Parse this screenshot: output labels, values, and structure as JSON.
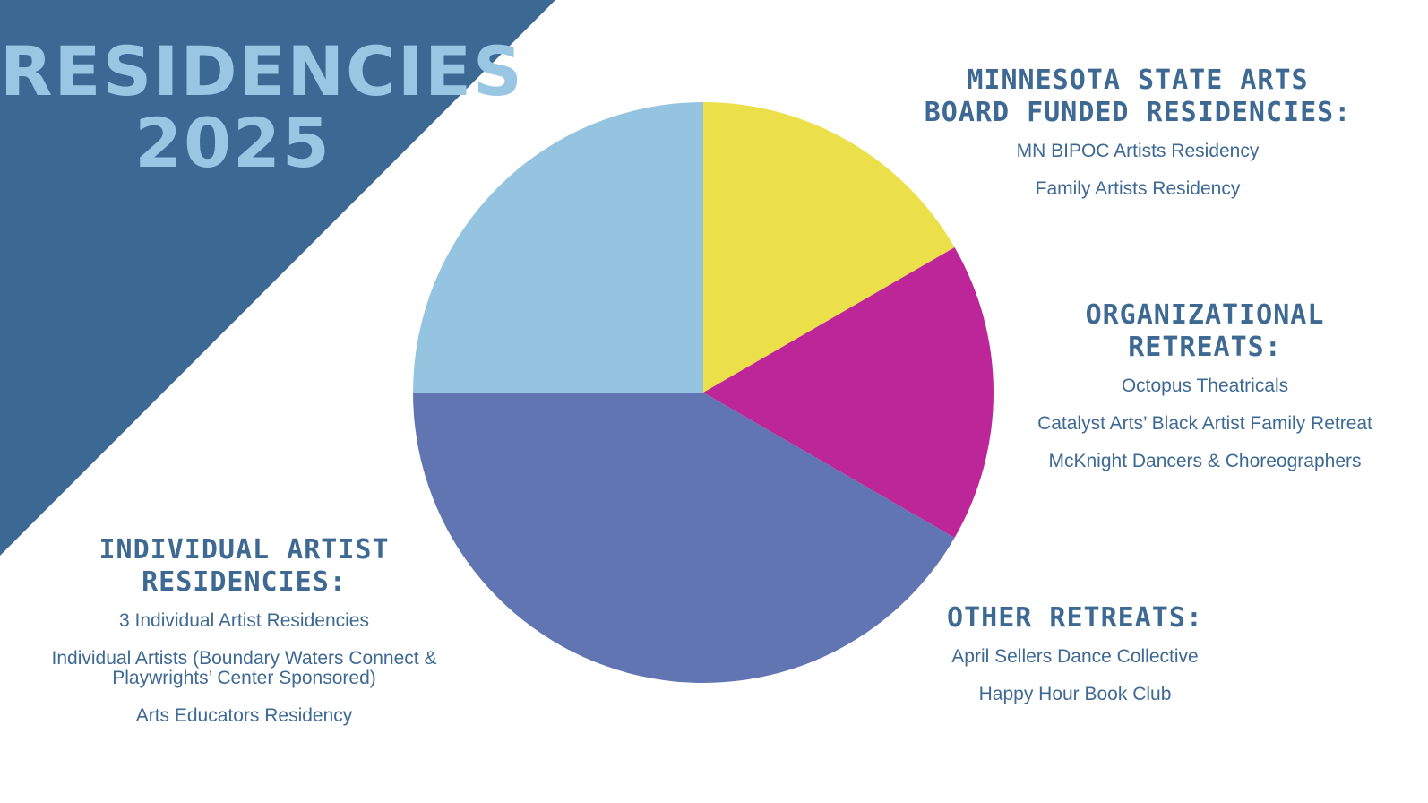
{
  "title": {
    "line1": "RESIDENCIES",
    "line2": "2025"
  },
  "colors": {
    "triangle": "#3c6894",
    "title": "#98c6e3",
    "text": "#3d6993",
    "msab": "#ebe04a",
    "org": "#bd2699",
    "other": "#6175b3",
    "indiv": "#95c4e0"
  },
  "chart_data": {
    "type": "pie",
    "start_angle_deg": 0,
    "direction": "clockwise",
    "slices": [
      {
        "key": "msab",
        "label": "MINNESOTA STATE ARTS BOARD FUNDED RESIDENCIES:",
        "value": 2,
        "color": "#ebe04a"
      },
      {
        "key": "org",
        "label": "ORGANIZATIONAL RETREATS:",
        "value": 2,
        "color": "#bd2699"
      },
      {
        "key": "other",
        "label": "OTHER RETREATS:",
        "value": 5,
        "color": "#6175b3"
      },
      {
        "key": "indiv",
        "label": "INDIVIDUAL ARTIST RESIDENCIES:",
        "value": 3,
        "color": "#95c4e0"
      }
    ]
  },
  "groups": {
    "msab": {
      "heading_line1": "MINNESOTA STATE ARTS",
      "heading_line2": "BOARD FUNDED RESIDENCIES:",
      "items": [
        "MN BIPOC Artists Residency",
        "Family Artists Residency"
      ]
    },
    "org": {
      "heading_line1": "ORGANIZATIONAL",
      "heading_line2": "RETREATS:",
      "items": [
        "Octopus Theatricals",
        "Catalyst Arts’ Black Artist Family Retreat",
        "McKnight Dancers & Choreographers"
      ]
    },
    "other": {
      "heading_line1": "OTHER RETREATS:",
      "items": [
        "April Sellers Dance Collective",
        "Happy Hour Book Club"
      ]
    },
    "indiv": {
      "heading_line1": "INDIVIDUAL ARTIST",
      "heading_line2": "RESIDENCIES:",
      "items": [
        "3 Individual Artist Residencies",
        "Individual Artists (Boundary Waters Connect & Playwrights’ Center Sponsored)",
        "Arts Educators Residency"
      ]
    }
  }
}
